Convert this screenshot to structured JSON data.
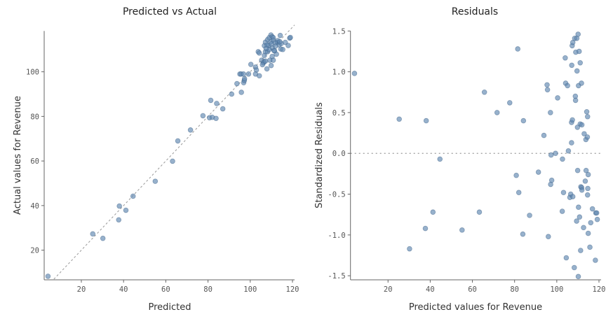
{
  "chart_data": [
    {
      "type": "scatter",
      "title": "Predicted vs Actual",
      "xlabel": "Predicted",
      "ylabel": "Actual values for Revenue",
      "xlim": [
        2.4,
        121
      ],
      "ylim": [
        6.7,
        118.3
      ],
      "xticks": [
        20,
        40,
        60,
        80,
        100,
        120
      ],
      "yticks": [
        20,
        40,
        60,
        80,
        100
      ],
      "xtick_labels": [
        "20",
        "40",
        "60",
        "80",
        "100",
        "120"
      ],
      "ytick_labels": [
        "20",
        "40",
        "60",
        "80",
        "100"
      ],
      "grid": false,
      "reference_line": "y = x (dashed)",
      "point_color": "#5f87b0",
      "points": [
        [
          4.2,
          8.3
        ],
        [
          25.4,
          27.3
        ],
        [
          30.2,
          25.3
        ],
        [
          37.7,
          33.6
        ],
        [
          38.0,
          39.8
        ],
        [
          41.1,
          37.9
        ],
        [
          44.5,
          44.2
        ],
        [
          55.0,
          50.9
        ],
        [
          63.2,
          59.9
        ],
        [
          65.7,
          69.0
        ],
        [
          71.7,
          73.9
        ],
        [
          77.6,
          80.3
        ],
        [
          80.7,
          79.4
        ],
        [
          82.0,
          79.6
        ],
        [
          81.3,
          87.2
        ],
        [
          83.8,
          79.1
        ],
        [
          84.1,
          85.8
        ],
        [
          87.0,
          83.4
        ],
        [
          91.2,
          90.0
        ],
        [
          93.7,
          94.7
        ],
        [
          95.8,
          90.8
        ],
        [
          95.1,
          99.0
        ],
        [
          95.7,
          99.0
        ],
        [
          96.8,
          99.0
        ],
        [
          96.9,
          95.1
        ],
        [
          97.2,
          96.1
        ],
        [
          97.3,
          96.9
        ],
        [
          99.2,
          99.0
        ],
        [
          100.3,
          103.3
        ],
        [
          102.5,
          102.1
        ],
        [
          102.9,
          100.8
        ],
        [
          102.5,
          99.0
        ],
        [
          104.3,
          98.2
        ],
        [
          103.8,
          109.0
        ],
        [
          104.3,
          108.4
        ],
        [
          105.4,
          105.2
        ],
        [
          106.2,
          104.0
        ],
        [
          106.6,
          104.5
        ],
        [
          107.2,
          104.8
        ],
        [
          107.9,
          101.3
        ],
        [
          109.3,
          105.2
        ],
        [
          109.9,
          102.8
        ],
        [
          110.9,
          105.2
        ],
        [
          110.4,
          106.9
        ],
        [
          106.7,
          107.3
        ],
        [
          107.2,
          109.0
        ],
        [
          106.7,
          111.7
        ],
        [
          107.2,
          113.3
        ],
        [
          108.2,
          114.4
        ],
        [
          108.7,
          111.7
        ],
        [
          109.0,
          115.3
        ],
        [
          109.8,
          116.5
        ],
        [
          110.4,
          115.7
        ],
        [
          110.9,
          115.3
        ],
        [
          109.7,
          113.4
        ],
        [
          110.4,
          110.7
        ],
        [
          111.5,
          109.4
        ],
        [
          112.4,
          107.9
        ],
        [
          112.9,
          113.2
        ],
        [
          113.7,
          112.1
        ],
        [
          114.2,
          116.3
        ],
        [
          114.7,
          112.7
        ],
        [
          114.5,
          110.2
        ],
        [
          115.4,
          110.0
        ],
        [
          116.6,
          113.2
        ],
        [
          118.0,
          111.8
        ],
        [
          118.7,
          115.1
        ],
        [
          110.9,
          114.2
        ],
        [
          108.2,
          109.0
        ],
        [
          105.8,
          103.2
        ],
        [
          111.3,
          109.5
        ],
        [
          113.0,
          114.0
        ],
        [
          108.0,
          112.0
        ],
        [
          111.8,
          113.0
        ],
        [
          114.0,
          113.5
        ],
        [
          109.0,
          110.0
        ],
        [
          112.0,
          111.5
        ],
        [
          107.5,
          110.5
        ],
        [
          119.0,
          115.4
        ],
        [
          110.0,
          112.5
        ]
      ]
    },
    {
      "type": "scatter",
      "title": "Residuals",
      "xlabel": "Predicted values for Revenue",
      "ylabel": "Standardized Residuals",
      "xlim": [
        2.2,
        121
      ],
      "ylim": [
        -1.55,
        1.5
      ],
      "xticks": [
        20,
        40,
        60,
        80,
        100,
        120
      ],
      "yticks": [
        -1.5,
        -1.0,
        -0.5,
        0.0,
        0.5,
        1.0,
        1.5
      ],
      "xtick_labels": [
        "20",
        "40",
        "60",
        "80",
        "100",
        "120"
      ],
      "ytick_labels": [
        "-1.5",
        "-1.0",
        "-0.5",
        "0.0",
        "0.5",
        "1.0",
        "1.5"
      ],
      "grid": false,
      "reference_line": "y = 0 (dotted)",
      "point_color": "#5f87b0",
      "points": [
        [
          4.1,
          0.98
        ],
        [
          25.3,
          0.42
        ],
        [
          30.2,
          -1.17
        ],
        [
          37.7,
          -0.92
        ],
        [
          38.1,
          0.4
        ],
        [
          41.3,
          -0.72
        ],
        [
          44.6,
          -0.07
        ],
        [
          55.1,
          -0.94
        ],
        [
          63.3,
          -0.72
        ],
        [
          65.7,
          0.75
        ],
        [
          71.7,
          0.5
        ],
        [
          77.7,
          0.62
        ],
        [
          80.8,
          -0.27
        ],
        [
          81.5,
          1.28
        ],
        [
          82.0,
          -0.48
        ],
        [
          83.9,
          -0.99
        ],
        [
          84.2,
          0.4
        ],
        [
          87.1,
          -0.76
        ],
        [
          91.3,
          -0.23
        ],
        [
          93.9,
          0.22
        ],
        [
          95.4,
          0.84
        ],
        [
          95.6,
          0.78
        ],
        [
          96.0,
          -1.02
        ],
        [
          97.0,
          0.5
        ],
        [
          97.1,
          -0.38
        ],
        [
          97.3,
          -0.02
        ],
        [
          97.6,
          -0.33
        ],
        [
          99.4,
          0.0
        ],
        [
          100.4,
          0.68
        ],
        [
          102.6,
          -0.71
        ],
        [
          102.7,
          -0.07
        ],
        [
          103.2,
          -0.48
        ],
        [
          104.0,
          1.17
        ],
        [
          104.2,
          0.86
        ],
        [
          104.5,
          -1.28
        ],
        [
          105.1,
          0.83
        ],
        [
          105.5,
          0.03
        ],
        [
          106.2,
          -0.54
        ],
        [
          106.6,
          -0.5
        ],
        [
          107.0,
          0.13
        ],
        [
          107.0,
          0.38
        ],
        [
          107.1,
          1.08
        ],
        [
          107.3,
          1.32
        ],
        [
          107.6,
          1.36
        ],
        [
          107.4,
          0.41
        ],
        [
          107.6,
          -0.53
        ],
        [
          108.3,
          -1.4
        ],
        [
          108.5,
          1.41
        ],
        [
          108.8,
          0.7
        ],
        [
          108.9,
          0.65
        ],
        [
          109.0,
          1.24
        ],
        [
          109.4,
          -0.83
        ],
        [
          109.5,
          1.41
        ],
        [
          109.6,
          1.01
        ],
        [
          109.8,
          0.32
        ],
        [
          109.9,
          -0.21
        ],
        [
          110.1,
          1.46
        ],
        [
          110.2,
          -1.51
        ],
        [
          110.3,
          -0.66
        ],
        [
          110.3,
          0.83
        ],
        [
          110.6,
          1.25
        ],
        [
          110.8,
          -0.78
        ],
        [
          111.1,
          1.11
        ],
        [
          111.1,
          0.36
        ],
        [
          111.3,
          -1.19
        ],
        [
          111.4,
          -0.41
        ],
        [
          111.7,
          0.86
        ],
        [
          111.8,
          -0.42
        ],
        [
          111.9,
          0.35
        ],
        [
          111.9,
          -0.45
        ],
        [
          112.7,
          -0.91
        ],
        [
          113.0,
          0.24
        ],
        [
          113.5,
          -0.34
        ],
        [
          113.8,
          0.17
        ],
        [
          113.9,
          -0.21
        ],
        [
          114.2,
          0.51
        ],
        [
          114.5,
          0.2
        ],
        [
          114.6,
          0.45
        ],
        [
          114.6,
          -0.51
        ],
        [
          114.7,
          -0.43
        ],
        [
          114.9,
          -0.26
        ],
        [
          114.9,
          -0.98
        ],
        [
          115.7,
          -1.15
        ],
        [
          116.1,
          -0.85
        ],
        [
          116.9,
          -0.68
        ],
        [
          118.3,
          -1.31
        ],
        [
          118.5,
          -0.73
        ],
        [
          118.9,
          -0.73
        ],
        [
          119.2,
          -0.81
        ]
      ]
    }
  ]
}
